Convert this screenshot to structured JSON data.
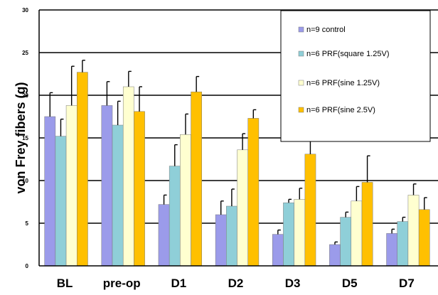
{
  "chart_data": {
    "type": "bar",
    "title": "",
    "xlabel": "",
    "ylabel": "von Frey fibers (g)",
    "ylim": [
      0,
      30
    ],
    "yticks": [
      0,
      5,
      10,
      15,
      20,
      25,
      30
    ],
    "grid": "horizontal",
    "legend_position": "top-right",
    "categories": [
      "BL",
      "pre-op",
      "D1",
      "D2",
      "D3",
      "D5",
      "D7"
    ],
    "series": [
      {
        "name": "n=9 control",
        "color": "#9b9bea",
        "values": [
          17.5,
          18.8,
          7.2,
          6.0,
          3.7,
          2.5,
          3.8
        ],
        "errors": [
          2.8,
          2.8,
          1.1,
          1.6,
          0.5,
          0.3,
          0.5
        ]
      },
      {
        "name": "n=6 PRF(square 1.25V)",
        "color": "#8fcfd8",
        "values": [
          15.2,
          16.5,
          11.7,
          7.0,
          7.4,
          5.7,
          5.2
        ],
        "errors": [
          2.0,
          2.8,
          2.5,
          2.0,
          0.4,
          0.6,
          0.5
        ]
      },
      {
        "name": "n=6 PRF(sine 1.25V)",
        "color": "#ffffd0",
        "values": [
          18.8,
          21.0,
          15.4,
          13.6,
          7.8,
          7.6,
          8.3
        ],
        "errors": [
          4.6,
          1.8,
          2.4,
          1.9,
          1.3,
          1.7,
          1.3
        ]
      },
      {
        "name": "n=6 PRF(sine 2.5V)",
        "color": "#ffc000",
        "values": [
          22.7,
          18.1,
          20.4,
          17.3,
          13.1,
          9.8,
          6.6
        ],
        "errors": [
          1.4,
          2.9,
          1.8,
          1.0,
          1.8,
          3.1,
          1.4
        ]
      }
    ]
  }
}
